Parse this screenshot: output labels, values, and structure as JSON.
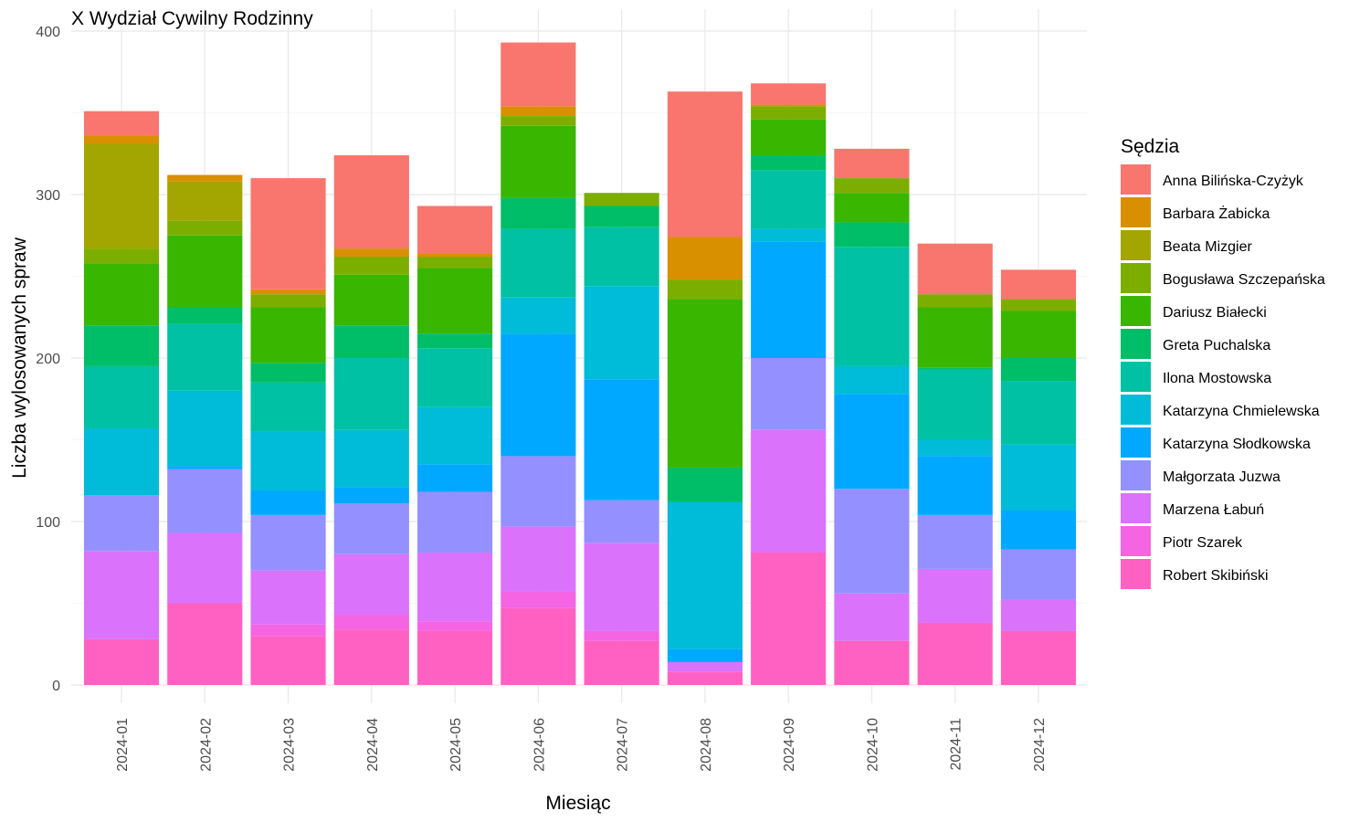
{
  "chart_data": {
    "type": "bar",
    "stacked": true,
    "title": "X Wydział Cywilny Rodzinny",
    "xlabel": "Miesiąc",
    "ylabel": "Liczba wylosowanych spraw",
    "ylim": [
      0,
      400
    ],
    "yticks": [
      "0",
      "100",
      "200",
      "300",
      "400"
    ],
    "grid": true,
    "legend_title": "Sędzia",
    "legend_position": "right",
    "categories": [
      "2024-01",
      "2024-02",
      "2024-03",
      "2024-04",
      "2024-05",
      "2024-06",
      "2024-07",
      "2024-08",
      "2024-09",
      "2024-10",
      "2024-11",
      "2024-12"
    ],
    "series": [
      {
        "name": "Robert Skibiński",
        "color": "#FF61C3",
        "values": [
          28,
          50,
          30,
          34,
          33,
          47,
          27,
          8,
          81,
          27,
          38,
          33
        ]
      },
      {
        "name": "Piotr Szarek",
        "color": "#F564E3",
        "values": [
          0,
          0,
          7,
          9,
          6,
          10,
          6,
          0,
          0,
          0,
          0,
          0
        ]
      },
      {
        "name": "Marzena Łabuń",
        "color": "#DB72FB",
        "values": [
          54,
          43,
          33,
          37,
          42,
          40,
          54,
          6,
          75,
          29,
          33,
          19
        ]
      },
      {
        "name": "Małgorzata Juzwa",
        "color": "#9590FF",
        "values": [
          34,
          39,
          34,
          31,
          37,
          43,
          26,
          0,
          44,
          64,
          33,
          31
        ]
      },
      {
        "name": "Katarzyna Słodkowska",
        "color": "#00A9FF",
        "values": [
          0,
          2,
          15,
          10,
          17,
          75,
          74,
          8,
          71,
          58,
          36,
          24
        ]
      },
      {
        "name": "Katarzyna Chmielewska",
        "color": "#00BCD8",
        "values": [
          41,
          46,
          36,
          35,
          35,
          22,
          57,
          90,
          8,
          17,
          10,
          40
        ]
      },
      {
        "name": "Ilona Mostowska",
        "color": "#00C1A3",
        "values": [
          38,
          41,
          30,
          44,
          36,
          42,
          36,
          0,
          36,
          73,
          43,
          39
        ]
      },
      {
        "name": "Greta Puchalska",
        "color": "#00BE67",
        "values": [
          25,
          10,
          12,
          20,
          9,
          19,
          13,
          21,
          9,
          15,
          1,
          14
        ]
      },
      {
        "name": "Dariusz Białecki",
        "color": "#39B600",
        "values": [
          38,
          44,
          34,
          31,
          40,
          44,
          0,
          103,
          22,
          18,
          37,
          29
        ]
      },
      {
        "name": "Bogusława Szczepańska",
        "color": "#7CAE00",
        "values": [
          9,
          9,
          8,
          11,
          7,
          6,
          8,
          12,
          8,
          9,
          8,
          7
        ]
      },
      {
        "name": "Beata Mizgier",
        "color": "#A3A500",
        "values": [
          64,
          24,
          0,
          0,
          0,
          0,
          0,
          0,
          0,
          0,
          0,
          0
        ]
      },
      {
        "name": "Barbara Żabicka",
        "color": "#D89000",
        "values": [
          5,
          4,
          3,
          5,
          2,
          6,
          0,
          26,
          1,
          0,
          0,
          0
        ]
      },
      {
        "name": "Anna Bilińska-Czyżyk",
        "color": "#F8766D",
        "values": [
          15,
          0,
          68,
          57,
          29,
          39,
          0,
          89,
          13,
          18,
          31,
          18
        ]
      }
    ],
    "legend_order": [
      "Anna Bilińska-Czyżyk",
      "Barbara Żabicka",
      "Beata Mizgier",
      "Bogusława Szczepańska",
      "Dariusz Białecki",
      "Greta Puchalska",
      "Ilona Mostowska",
      "Katarzyna Chmielewska",
      "Katarzyna Słodkowska",
      "Małgorzata Juzwa",
      "Marzena Łabuń",
      "Piotr Szarek",
      "Robert Skibiński"
    ]
  }
}
